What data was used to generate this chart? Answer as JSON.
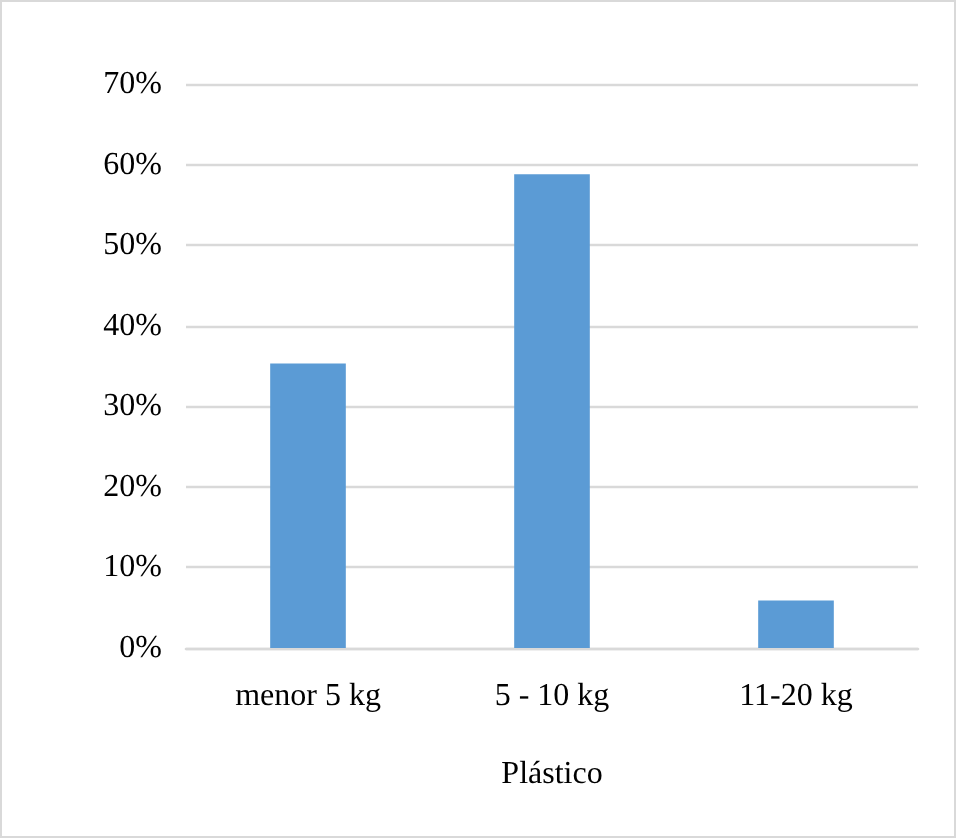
{
  "chart_data": {
    "type": "bar",
    "xlabel": "Plástico",
    "categories": [
      "menor 5 kg",
      "5 - 10 kg",
      "11-20 kg"
    ],
    "values": [
      35.3,
      58.8,
      5.9
    ],
    "color": "#5b9bd5",
    "ylim": [
      0,
      70
    ],
    "yticks": [
      {
        "value": 0,
        "label": "0%"
      },
      {
        "value": 10,
        "label": "10%"
      },
      {
        "value": 20,
        "label": "20%"
      },
      {
        "value": 30,
        "label": "30%"
      },
      {
        "value": 40,
        "label": "40%"
      },
      {
        "value": 50,
        "label": "50%"
      },
      {
        "value": 60,
        "label": "60%"
      },
      {
        "value": 70,
        "label": "70%"
      }
    ],
    "grid": "y"
  }
}
